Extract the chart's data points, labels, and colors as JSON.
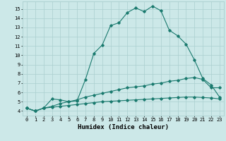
{
  "xlabel": "Humidex (Indice chaleur)",
  "ylabel": "",
  "xlim": [
    -0.5,
    23.5
  ],
  "ylim": [
    3.5,
    15.8
  ],
  "yticks": [
    4,
    5,
    6,
    7,
    8,
    9,
    10,
    11,
    12,
    13,
    14,
    15
  ],
  "xticks": [
    0,
    1,
    2,
    3,
    4,
    5,
    6,
    7,
    8,
    9,
    10,
    11,
    12,
    13,
    14,
    15,
    16,
    17,
    18,
    19,
    20,
    21,
    22,
    23
  ],
  "line_color": "#1a7a6e",
  "bg_color": "#cce8e8",
  "grid_color": "#aacfcf",
  "line1_x": [
    0,
    1,
    2,
    3,
    4,
    5,
    6,
    7,
    8,
    9,
    10,
    11,
    12,
    13,
    14,
    15,
    16,
    17,
    18,
    19,
    20,
    21,
    22,
    23
  ],
  "line1_y": [
    4.3,
    4.0,
    4.3,
    5.3,
    5.2,
    5.0,
    5.1,
    7.4,
    10.2,
    11.1,
    13.2,
    13.5,
    14.6,
    15.1,
    14.7,
    15.3,
    14.8,
    12.7,
    12.1,
    11.2,
    9.5,
    7.5,
    6.8,
    5.5
  ],
  "line2_x": [
    0,
    1,
    2,
    3,
    4,
    5,
    6,
    7,
    8,
    9,
    10,
    11,
    12,
    13,
    14,
    15,
    16,
    17,
    18,
    19,
    20,
    21,
    22,
    23
  ],
  "line2_y": [
    4.3,
    4.0,
    4.3,
    4.5,
    4.8,
    5.0,
    5.2,
    5.5,
    5.7,
    5.9,
    6.1,
    6.3,
    6.5,
    6.6,
    6.7,
    6.9,
    7.0,
    7.2,
    7.3,
    7.5,
    7.6,
    7.4,
    6.5,
    6.5
  ],
  "line3_x": [
    0,
    1,
    2,
    3,
    4,
    5,
    6,
    7,
    8,
    9,
    10,
    11,
    12,
    13,
    14,
    15,
    16,
    17,
    18,
    19,
    20,
    21,
    22,
    23
  ],
  "line3_y": [
    4.3,
    4.0,
    4.3,
    4.4,
    4.5,
    4.6,
    4.7,
    4.8,
    4.9,
    5.0,
    5.05,
    5.1,
    5.15,
    5.2,
    5.25,
    5.3,
    5.35,
    5.4,
    5.45,
    5.5,
    5.5,
    5.45,
    5.4,
    5.3
  ],
  "marker": "D",
  "marker_size": 1.8,
  "linewidth": 0.8,
  "tick_fontsize": 5.0,
  "xlabel_fontsize": 6.5
}
